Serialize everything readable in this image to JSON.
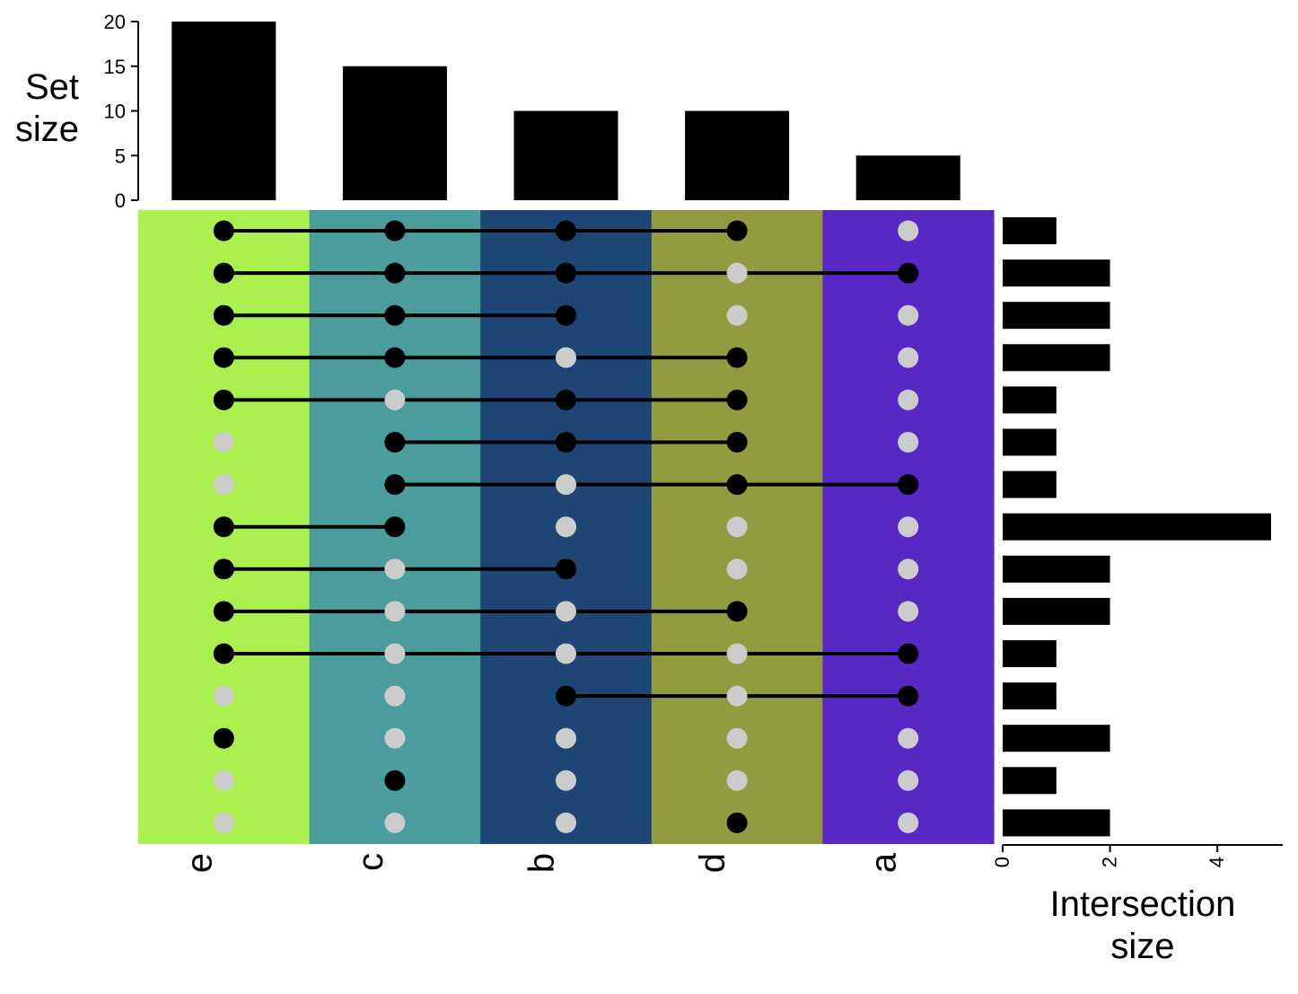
{
  "chart_data": {
    "type": "upset",
    "sets": [
      "e",
      "c",
      "b",
      "d",
      "a"
    ],
    "set_colors": [
      "#aaf04f",
      "#4a9c9d",
      "#1e4674",
      "#939b40",
      "#5828c4"
    ],
    "set_sizes": [
      20,
      15,
      10,
      10,
      5
    ],
    "set_size_axis": {
      "title_lines": [
        "Set",
        "size"
      ],
      "ticks": [
        0,
        5,
        10,
        15,
        20
      ],
      "range": [
        0,
        20
      ]
    },
    "intersections": [
      {
        "sets": [
          "e",
          "c",
          "b",
          "d"
        ],
        "size": 1
      },
      {
        "sets": [
          "e",
          "c",
          "b",
          "a"
        ],
        "size": 2
      },
      {
        "sets": [
          "e",
          "c",
          "b"
        ],
        "size": 2
      },
      {
        "sets": [
          "e",
          "c",
          "d"
        ],
        "size": 2
      },
      {
        "sets": [
          "e",
          "b",
          "d"
        ],
        "size": 1
      },
      {
        "sets": [
          "c",
          "b",
          "d"
        ],
        "size": 1
      },
      {
        "sets": [
          "c",
          "d",
          "a"
        ],
        "size": 1
      },
      {
        "sets": [
          "e",
          "c"
        ],
        "size": 5
      },
      {
        "sets": [
          "e",
          "b"
        ],
        "size": 2
      },
      {
        "sets": [
          "e",
          "d"
        ],
        "size": 2
      },
      {
        "sets": [
          "e",
          "a"
        ],
        "size": 1
      },
      {
        "sets": [
          "b",
          "a"
        ],
        "size": 1
      },
      {
        "sets": [
          "e"
        ],
        "size": 2
      },
      {
        "sets": [
          "c"
        ],
        "size": 1
      },
      {
        "sets": [
          "d"
        ],
        "size": 2
      }
    ],
    "intersection_size_axis": {
      "title_lines": [
        "Intersection",
        "size"
      ],
      "ticks": [
        0,
        2,
        4
      ],
      "range": [
        0,
        5
      ]
    },
    "colors": {
      "active_dot": "#000000",
      "inactive_dot": "#cccccc",
      "bar": "#000000"
    }
  }
}
